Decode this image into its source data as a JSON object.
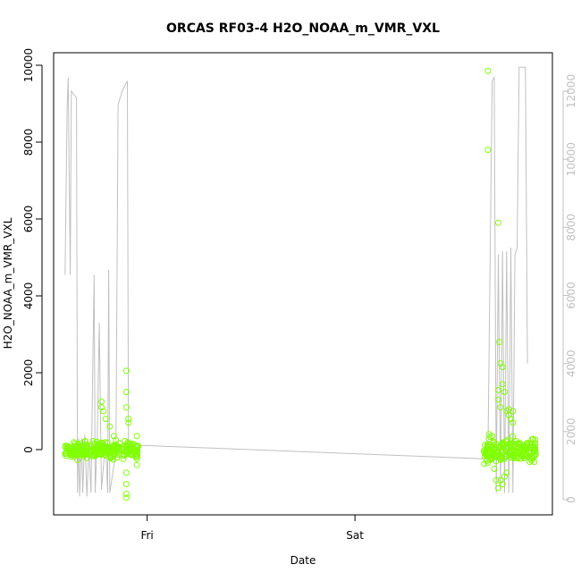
{
  "chart_data": {
    "type": "scatter",
    "title": "ORCAS RF03-4 H2O_NOAA_m_VMR_VXL",
    "xlabel": "Date",
    "ylabel": "H2O_NOAA_m_VMR_VXL",
    "x_ticks": [
      {
        "label": "Fri",
        "value": 1.0
      },
      {
        "label": "Sat",
        "value": 2.0
      }
    ],
    "xlim": [
      0.55,
      2.95
    ],
    "ylim": [
      -1700,
      10000
    ],
    "y_ticks": [
      "0",
      "2000",
      "4000",
      "6000",
      "8000",
      "10000"
    ],
    "y2lim": [
      -100,
      13000
    ],
    "y2_ticks": [
      "0",
      "2000",
      "4000",
      "6000",
      "8000",
      "10000",
      "12000"
    ],
    "grid": false,
    "colors": {
      "points": "#7fff00",
      "line": "#c0c0c0",
      "frame": "#000000"
    },
    "series": [
      {
        "role": "scatter (left axis)",
        "clusters": [
          {
            "x_start": 0.605,
            "x_end": 0.96,
            "baseline": 0,
            "spread": 200
          },
          {
            "x_start": 2.62,
            "x_end": 2.87,
            "baseline": 0,
            "spread": 300
          }
        ],
        "points": [
          [
            0.78,
            1250
          ],
          [
            0.78,
            1100
          ],
          [
            0.79,
            1000
          ],
          [
            0.8,
            800
          ],
          [
            0.82,
            600
          ],
          [
            0.84,
            350
          ],
          [
            0.85,
            250
          ],
          [
            0.9,
            2050
          ],
          [
            0.9,
            1500
          ],
          [
            0.9,
            1100
          ],
          [
            0.91,
            800
          ],
          [
            0.91,
            700
          ],
          [
            0.9,
            -600
          ],
          [
            0.9,
            -900
          ],
          [
            0.9,
            -1150
          ],
          [
            0.9,
            -1250
          ],
          [
            0.95,
            350
          ],
          [
            0.95,
            -400
          ],
          [
            2.64,
            9850
          ],
          [
            2.64,
            7800
          ],
          [
            2.645,
            400
          ],
          [
            2.69,
            5900
          ],
          [
            2.695,
            2800
          ],
          [
            2.7,
            2250
          ],
          [
            2.71,
            2150
          ],
          [
            2.71,
            1700
          ],
          [
            2.72,
            1500
          ],
          [
            2.69,
            1550
          ],
          [
            2.69,
            1300
          ],
          [
            2.7,
            1100
          ],
          [
            2.73,
            1000
          ],
          [
            2.74,
            1050
          ],
          [
            2.74,
            900
          ],
          [
            2.75,
            800
          ],
          [
            2.76,
            1000
          ],
          [
            2.76,
            700
          ],
          [
            2.67,
            -500
          ],
          [
            2.68,
            -800
          ],
          [
            2.69,
            -1000
          ],
          [
            2.7,
            -800
          ],
          [
            2.71,
            -900
          ],
          [
            2.72,
            -700
          ],
          [
            2.73,
            -600
          ]
        ]
      },
      {
        "role": "line (right axis)",
        "points": [
          [
            0.605,
            6600
          ],
          [
            0.615,
            11500
          ],
          [
            0.62,
            12400
          ],
          [
            0.63,
            6600
          ],
          [
            0.635,
            12000
          ],
          [
            0.66,
            11800
          ],
          [
            0.665,
            200
          ],
          [
            0.67,
            1800
          ],
          [
            0.675,
            100
          ],
          [
            0.685,
            1800
          ],
          [
            0.69,
            200
          ],
          [
            0.7,
            1900
          ],
          [
            0.71,
            100
          ],
          [
            0.72,
            1600
          ],
          [
            0.73,
            200
          ],
          [
            0.745,
            6600
          ],
          [
            0.75,
            200
          ],
          [
            0.76,
            1800
          ],
          [
            0.77,
            5200
          ],
          [
            0.78,
            300
          ],
          [
            0.8,
            1700
          ],
          [
            0.81,
            200
          ],
          [
            0.815,
            6750
          ],
          [
            0.82,
            200
          ],
          [
            0.85,
            1400
          ],
          [
            0.86,
            11600
          ],
          [
            0.88,
            12000
          ],
          [
            0.905,
            12300
          ],
          [
            0.91,
            1700
          ],
          [
            0.96,
            1600
          ],
          [
            2.62,
            1200
          ],
          [
            2.63,
            1700
          ],
          [
            2.64,
            1400
          ],
          [
            2.66,
            12300
          ],
          [
            2.67,
            12400
          ],
          [
            2.68,
            200
          ],
          [
            2.69,
            7200
          ],
          [
            2.7,
            300
          ],
          [
            2.71,
            7300
          ],
          [
            2.72,
            200
          ],
          [
            2.73,
            7300
          ],
          [
            2.74,
            200
          ],
          [
            2.75,
            7400
          ],
          [
            2.76,
            200
          ],
          [
            2.77,
            7200
          ],
          [
            2.78,
            7400
          ],
          [
            2.79,
            12700
          ],
          [
            2.82,
            12700
          ],
          [
            2.83,
            4000
          ]
        ]
      }
    ]
  }
}
